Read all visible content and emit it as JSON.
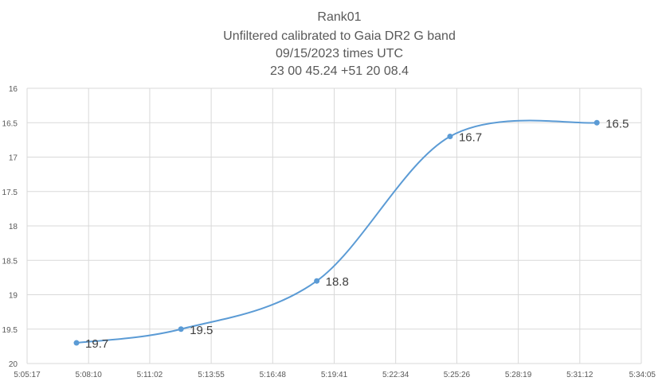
{
  "chart_data": {
    "type": "line",
    "title_lines": [
      "Rank01",
      "Unfiltered calibrated to Gaia DR2 G band",
      "09/15/2023 times UTC",
      "23 00 45.24 +51 20 08.4"
    ],
    "xlabel": "",
    "ylabel": "",
    "x_tick_labels": [
      "5:05:17",
      "5:08:10",
      "5:11:02",
      "5:13:55",
      "5:16:48",
      "5:19:41",
      "5:22:34",
      "5:25:26",
      "5:28:19",
      "5:31:12",
      "5:34:05"
    ],
    "y_tick_labels": [
      "16",
      "16.5",
      "17",
      "17.5",
      "18",
      "18.5",
      "19",
      "19.5",
      "20"
    ],
    "xlim": [
      "5:05:17",
      "5:34:05"
    ],
    "ylim": [
      16,
      20
    ],
    "y_inverted": true,
    "grid": true,
    "smoothed": true,
    "series": [
      {
        "color": "#5b9bd5",
        "points": [
          {
            "x": "5:07:36",
            "y": 19.7,
            "label": "19.7"
          },
          {
            "x": "5:12:30",
            "y": 19.5,
            "label": "19.5"
          },
          {
            "x": "5:18:52",
            "y": 18.8,
            "label": "18.8"
          },
          {
            "x": "5:25:07",
            "y": 16.7,
            "label": "16.7"
          },
          {
            "x": "5:32:00",
            "y": 16.5,
            "label": "16.5"
          }
        ]
      }
    ]
  }
}
